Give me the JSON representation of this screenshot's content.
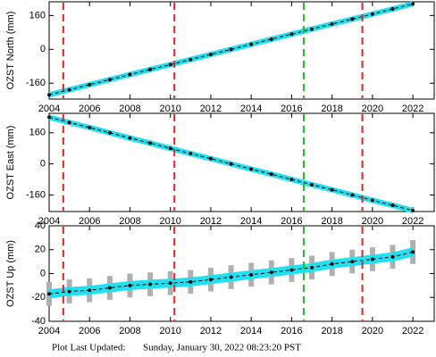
{
  "chart_data": [
    {
      "type": "scatter",
      "ylabel": "OZST North (mm)",
      "x": [
        2004,
        2005,
        2006,
        2007,
        2008,
        2009,
        2010,
        2011,
        2012,
        2013,
        2014,
        2015,
        2016,
        2017,
        2018,
        2019,
        2020,
        2021,
        2022
      ],
      "values": [
        -215,
        -191,
        -167,
        -143,
        -119,
        -95,
        -72,
        -48,
        -24,
        0,
        24,
        48,
        72,
        96,
        120,
        143,
        167,
        191,
        215
      ],
      "color": "#22e0f0",
      "xlim": [
        2004,
        2023.1
      ],
      "xticks": [
        2004,
        2006,
        2008,
        2010,
        2012,
        2014,
        2016,
        2018,
        2020,
        2022
      ],
      "ylim": [
        -235,
        225
      ],
      "yticks": [
        -160,
        0,
        160
      ],
      "vlines": [
        {
          "x": 2004.7,
          "color": "#e82020"
        },
        {
          "x": 2010.2,
          "color": "#e82020"
        },
        {
          "x": 2016.6,
          "color": "#20c020"
        },
        {
          "x": 2019.5,
          "color": "#e82020"
        }
      ]
    },
    {
      "type": "scatter",
      "ylabel": "OZST East (mm)",
      "x": [
        2004,
        2005,
        2006,
        2007,
        2008,
        2009,
        2010,
        2011,
        2012,
        2013,
        2014,
        2015,
        2016,
        2017,
        2018,
        2019,
        2020,
        2021,
        2022
      ],
      "values": [
        240,
        213,
        187,
        160,
        133,
        107,
        80,
        53,
        27,
        0,
        -27,
        -53,
        -80,
        -107,
        -133,
        -160,
        -187,
        -213,
        -240
      ],
      "color": "#22e0f0",
      "xlim": [
        2004,
        2023.1
      ],
      "xticks": [
        2004,
        2006,
        2008,
        2010,
        2012,
        2014,
        2016,
        2018,
        2020,
        2022
      ],
      "ylim": [
        -245,
        260
      ],
      "yticks": [
        -160,
        0,
        160
      ],
      "vlines": [
        {
          "x": 2004.7,
          "color": "#e82020"
        },
        {
          "x": 2010.2,
          "color": "#e82020"
        },
        {
          "x": 2016.6,
          "color": "#20c020"
        },
        {
          "x": 2019.5,
          "color": "#e82020"
        }
      ]
    },
    {
      "type": "scatter",
      "ylabel": "OZST Up (mm)",
      "x": [
        2004,
        2005,
        2006,
        2007,
        2008,
        2009,
        2010,
        2011,
        2012,
        2013,
        2014,
        2015,
        2016,
        2017,
        2018,
        2019,
        2020,
        2021,
        2022
      ],
      "values": [
        -17,
        -15,
        -14,
        -12,
        -10,
        -9,
        -8,
        -7,
        -5,
        -3,
        -1,
        1,
        3,
        5,
        8,
        10,
        12,
        14,
        18
      ],
      "errors": [
        10,
        10,
        10,
        10,
        10,
        10,
        10,
        10,
        10,
        10,
        10,
        10,
        10,
        10,
        10,
        10,
        10,
        10,
        10
      ],
      "color": "#22e0f0",
      "xlim": [
        2004,
        2023.1
      ],
      "xticks": [
        2004,
        2006,
        2008,
        2010,
        2012,
        2014,
        2016,
        2018,
        2020,
        2022
      ],
      "ylim": [
        -40,
        40
      ],
      "yticks": [
        -40,
        -20,
        0,
        20,
        40
      ],
      "vlines": [
        {
          "x": 2004.7,
          "color": "#e82020"
        },
        {
          "x": 2010.2,
          "color": "#e82020"
        },
        {
          "x": 2016.6,
          "color": "#20c020"
        },
        {
          "x": 2019.5,
          "color": "#e82020"
        }
      ]
    }
  ],
  "footer_label": "Plot Last Updated:",
  "footer_date": "Sunday, January 30, 2022 08:23:20 PST"
}
